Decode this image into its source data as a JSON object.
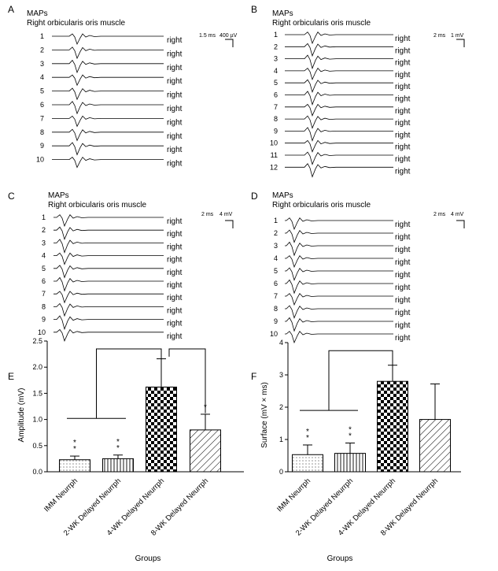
{
  "panels": [
    {
      "letter": "A",
      "title1": "MAPs",
      "title2": "Right orbicularis oris muscle",
      "scale_time": "1.5 ms",
      "scale_amp": "400 µV",
      "trace_count": 10,
      "trace_label": "right"
    },
    {
      "letter": "B",
      "title1": "MAPs",
      "title2": "Right orbicularis oris muscle",
      "scale_time": "2 ms",
      "scale_amp": "1 mV",
      "trace_count": 12,
      "trace_label": "right"
    },
    {
      "letter": "C",
      "title1": "MAPs",
      "title2": "Right orbicularis oris muscle",
      "scale_time": "2 ms",
      "scale_amp": "4 mV",
      "trace_count": 10,
      "trace_label": "right"
    },
    {
      "letter": "D",
      "title1": "MAPs",
      "title2": "Right orbicularis oris muscle",
      "scale_time": "2 ms",
      "scale_amp": "4 mV",
      "trace_count": 10,
      "trace_label": "right"
    }
  ],
  "chart_data": [
    {
      "panel": "E",
      "type": "bar",
      "title": "",
      "xlabel": "Groups",
      "ylabel": "Amplitude (mV)",
      "ylim": [
        0,
        2.5
      ],
      "yticks": [
        0,
        0.5,
        1.0,
        1.5,
        2.0,
        2.5
      ],
      "categories": [
        "IMM Neurrph",
        "2-WK Delayed Neurrph",
        "4-WK Delayed Neurrph",
        "8-WK Delayed Neurrph"
      ],
      "values": [
        0.23,
        0.25,
        1.62,
        0.8
      ],
      "errors": [
        0.07,
        0.07,
        0.54,
        0.3
      ],
      "patterns": [
        "dots",
        "vertical",
        "checker",
        "diagonal"
      ],
      "significance": [
        "**",
        "**",
        "",
        "*"
      ]
    },
    {
      "panel": "F",
      "type": "bar",
      "title": "",
      "xlabel": "Groups",
      "ylabel": "Surface (mV × ms)",
      "ylim": [
        0,
        4
      ],
      "yticks": [
        0,
        1,
        2,
        3,
        4
      ],
      "categories": [
        "IMM Neurrph",
        "2-WK Delayed Neurrph",
        "4-WK Delayed Neurrph",
        "8-WK Delayed Neurrph"
      ],
      "values": [
        0.53,
        0.57,
        2.8,
        1.62
      ],
      "errors": [
        0.3,
        0.32,
        0.5,
        1.1
      ],
      "patterns": [
        "dots",
        "vertical",
        "checker",
        "diagonal"
      ],
      "significance": [
        "**",
        "**",
        "",
        ""
      ]
    }
  ]
}
